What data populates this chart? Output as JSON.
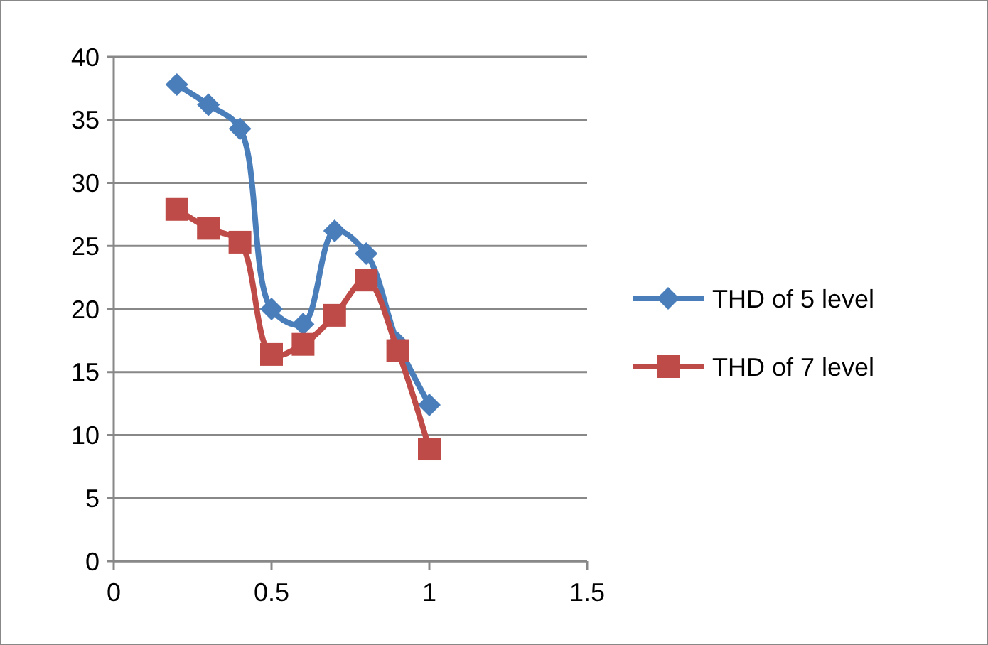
{
  "chart_data": {
    "type": "line",
    "x": [
      0.2,
      0.3,
      0.4,
      0.5,
      0.6,
      0.7,
      0.8,
      0.9,
      1.0
    ],
    "series": [
      {
        "name": "THD of 5 level",
        "color": "#4a7ebb",
        "marker": "diamond",
        "values": [
          37.8,
          36.2,
          34.3,
          20,
          18.8,
          26.2,
          24.4,
          17.3,
          12.4
        ]
      },
      {
        "name": "THD of 7 level",
        "color": "#be4b48",
        "marker": "square",
        "values": [
          27.9,
          26.4,
          25.3,
          16.4,
          17.2,
          19.5,
          22.3,
          16.7,
          8.9
        ]
      }
    ],
    "xlim": [
      0,
      1.5
    ],
    "xticks": [
      0,
      0.5,
      1,
      1.5
    ],
    "ylim": [
      0,
      40
    ],
    "yticks": [
      0,
      5,
      10,
      15,
      20,
      25,
      30,
      35,
      40
    ],
    "grid": "y",
    "legend": "right"
  }
}
